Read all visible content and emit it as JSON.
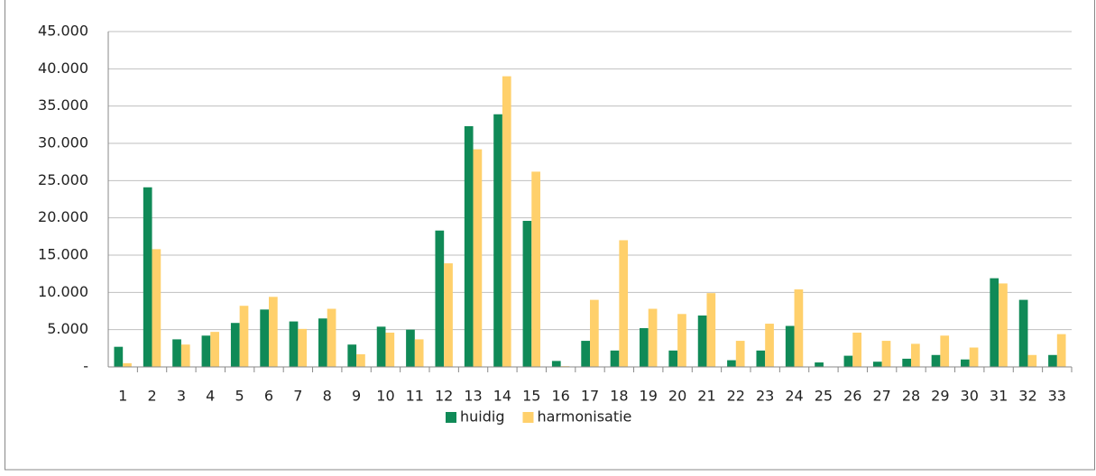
{
  "chart_data": {
    "type": "bar",
    "categories": [
      "1",
      "2",
      "3",
      "4",
      "5",
      "6",
      "7",
      "8",
      "9",
      "10",
      "11",
      "12",
      "13",
      "14",
      "15",
      "16",
      "17",
      "18",
      "19",
      "20",
      "21",
      "22",
      "23",
      "24",
      "25",
      "26",
      "27",
      "28",
      "29",
      "30",
      "31",
      "32",
      "33"
    ],
    "series": [
      {
        "name": "huidig",
        "color": "#108a57",
        "values": [
          2700,
          24100,
          3700,
          4200,
          5900,
          7700,
          6100,
          6500,
          3000,
          5400,
          5000,
          18300,
          32300,
          33900,
          19600,
          800,
          3500,
          2200,
          5200,
          2200,
          6900,
          900,
          2200,
          5500,
          600,
          1500,
          700,
          1100,
          1600,
          1000,
          11900,
          9000,
          1600
        ]
      },
      {
        "name": "harmonisatie",
        "color": "#ffd06b",
        "values": [
          500,
          15800,
          3000,
          4700,
          8200,
          9400,
          5100,
          7800,
          1700,
          4600,
          3700,
          13900,
          29200,
          39000,
          26200,
          100,
          9000,
          17000,
          7800,
          7100,
          9900,
          3500,
          5800,
          10400,
          0,
          4600,
          3500,
          3100,
          4200,
          2600,
          11200,
          1600,
          4400
        ]
      }
    ],
    "ylim": [
      0,
      45000
    ],
    "yticks": [
      {
        "value": 0,
        "label": "-"
      },
      {
        "value": 5000,
        "label": "5.000"
      },
      {
        "value": 10000,
        "label": "10.000"
      },
      {
        "value": 15000,
        "label": "15.000"
      },
      {
        "value": 20000,
        "label": "20.000"
      },
      {
        "value": 25000,
        "label": "25.000"
      },
      {
        "value": 30000,
        "label": "30.000"
      },
      {
        "value": 35000,
        "label": "35.000"
      },
      {
        "value": 40000,
        "label": "40.000"
      },
      {
        "value": 45000,
        "label": "45.000"
      }
    ],
    "grid": true,
    "legend": "bottom"
  }
}
